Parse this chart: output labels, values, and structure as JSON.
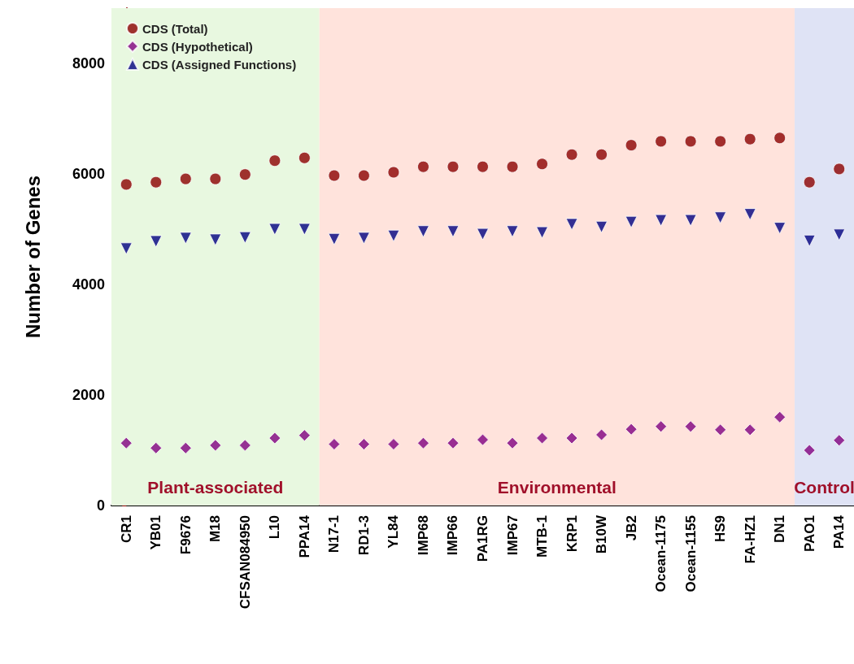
{
  "chart_data": {
    "type": "scatter",
    "ylabel": "Number of Genes",
    "categories": [
      "CR1",
      "YB01",
      "F9676",
      "M18",
      "CFSAN084950",
      "L10",
      "PPA14",
      "N17-1",
      "RD1-3",
      "YL84",
      "IMP68",
      "IMP66",
      "PA1RG",
      "IMP67",
      "MTB-1",
      "KRP1",
      "B10W",
      "JB2",
      "Ocean-1175",
      "Ocean-1155",
      "HS9",
      "FA-HZ1",
      "DN1",
      "PAO1",
      "PA14"
    ],
    "series": [
      {
        "name": "CDS (Total)",
        "color": "#8b0000",
        "marker": "circle",
        "values": [
          5810,
          5850,
          5910,
          5910,
          5990,
          6240,
          6290,
          5970,
          5970,
          6030,
          6130,
          6130,
          6130,
          6130,
          6180,
          6350,
          6350,
          6520,
          6590,
          6590,
          6590,
          6630,
          6650,
          5850,
          6090
        ]
      },
      {
        "name": "CDS (Hypothetical)",
        "color": "#800080",
        "marker": "diamond",
        "values": [
          1130,
          1040,
          1040,
          1090,
          1090,
          1220,
          1270,
          1110,
          1110,
          1110,
          1130,
          1130,
          1190,
          1130,
          1220,
          1220,
          1280,
          1380,
          1430,
          1430,
          1370,
          1370,
          1600,
          1000,
          1180
        ]
      },
      {
        "name": "CDS (Assigned Functions)",
        "color": "#000080",
        "marker": "triangle",
        "values": [
          4650,
          4780,
          4840,
          4810,
          4850,
          5000,
          5000,
          4820,
          4840,
          4880,
          4960,
          4960,
          4910,
          4960,
          4940,
          5090,
          5040,
          5130,
          5160,
          5160,
          5210,
          5270,
          5020,
          4790,
          4900
        ]
      }
    ],
    "ylim": [
      0,
      9000
    ],
    "yticks": [
      0,
      2000,
      4000,
      6000,
      8000
    ],
    "grid": false,
    "legend": "top left",
    "bands": [
      {
        "axis": "x",
        "from": "CR1",
        "to": "PPA14",
        "label": "Plant-associated",
        "color": "#e8f8e0"
      },
      {
        "axis": "x",
        "from": "N17-1",
        "to": "DN1",
        "label": "Environmental",
        "color": "#ffe3dc"
      },
      {
        "axis": "x",
        "from": "PAO1",
        "to": "PA14",
        "label": "Control",
        "color": "#dfe3f5"
      }
    ]
  }
}
